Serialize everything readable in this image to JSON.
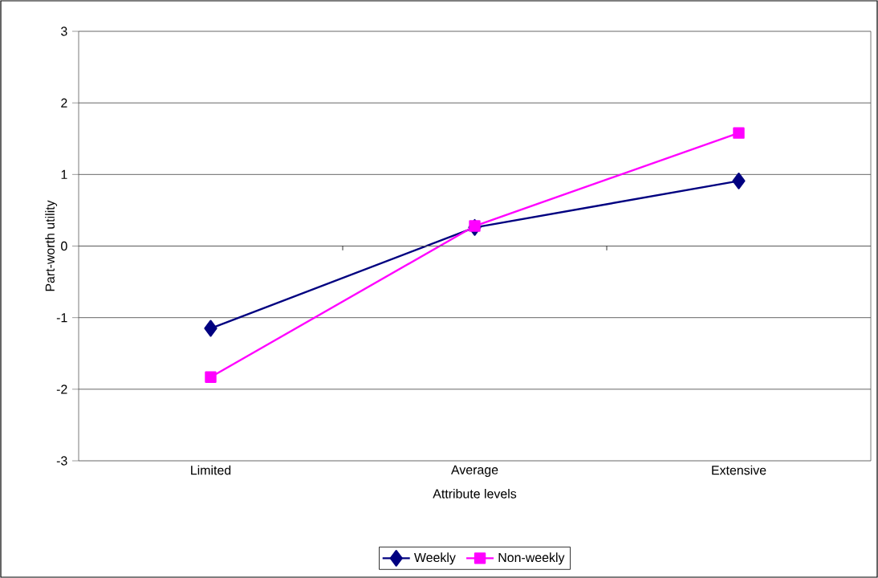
{
  "chart_data": {
    "type": "line",
    "xlabel": "Attribute levels",
    "ylabel": "Part-worth utility",
    "categories": [
      "Limited",
      "Average",
      "Extensive"
    ],
    "series": [
      {
        "name": "Weekly",
        "color": "#000080",
        "values": [
          -1.15,
          0.26,
          0.91
        ],
        "marker": "diamond"
      },
      {
        "name": "Non-weekly",
        "color": "#ff00ff",
        "values": [
          -1.83,
          0.28,
          1.58
        ],
        "marker": "square"
      }
    ],
    "ylim": [
      -3,
      3
    ],
    "yticks": [
      -3,
      -2,
      -1,
      0,
      1,
      2,
      3
    ],
    "grid": "y",
    "legend": "bottom",
    "line_style": "solid"
  }
}
